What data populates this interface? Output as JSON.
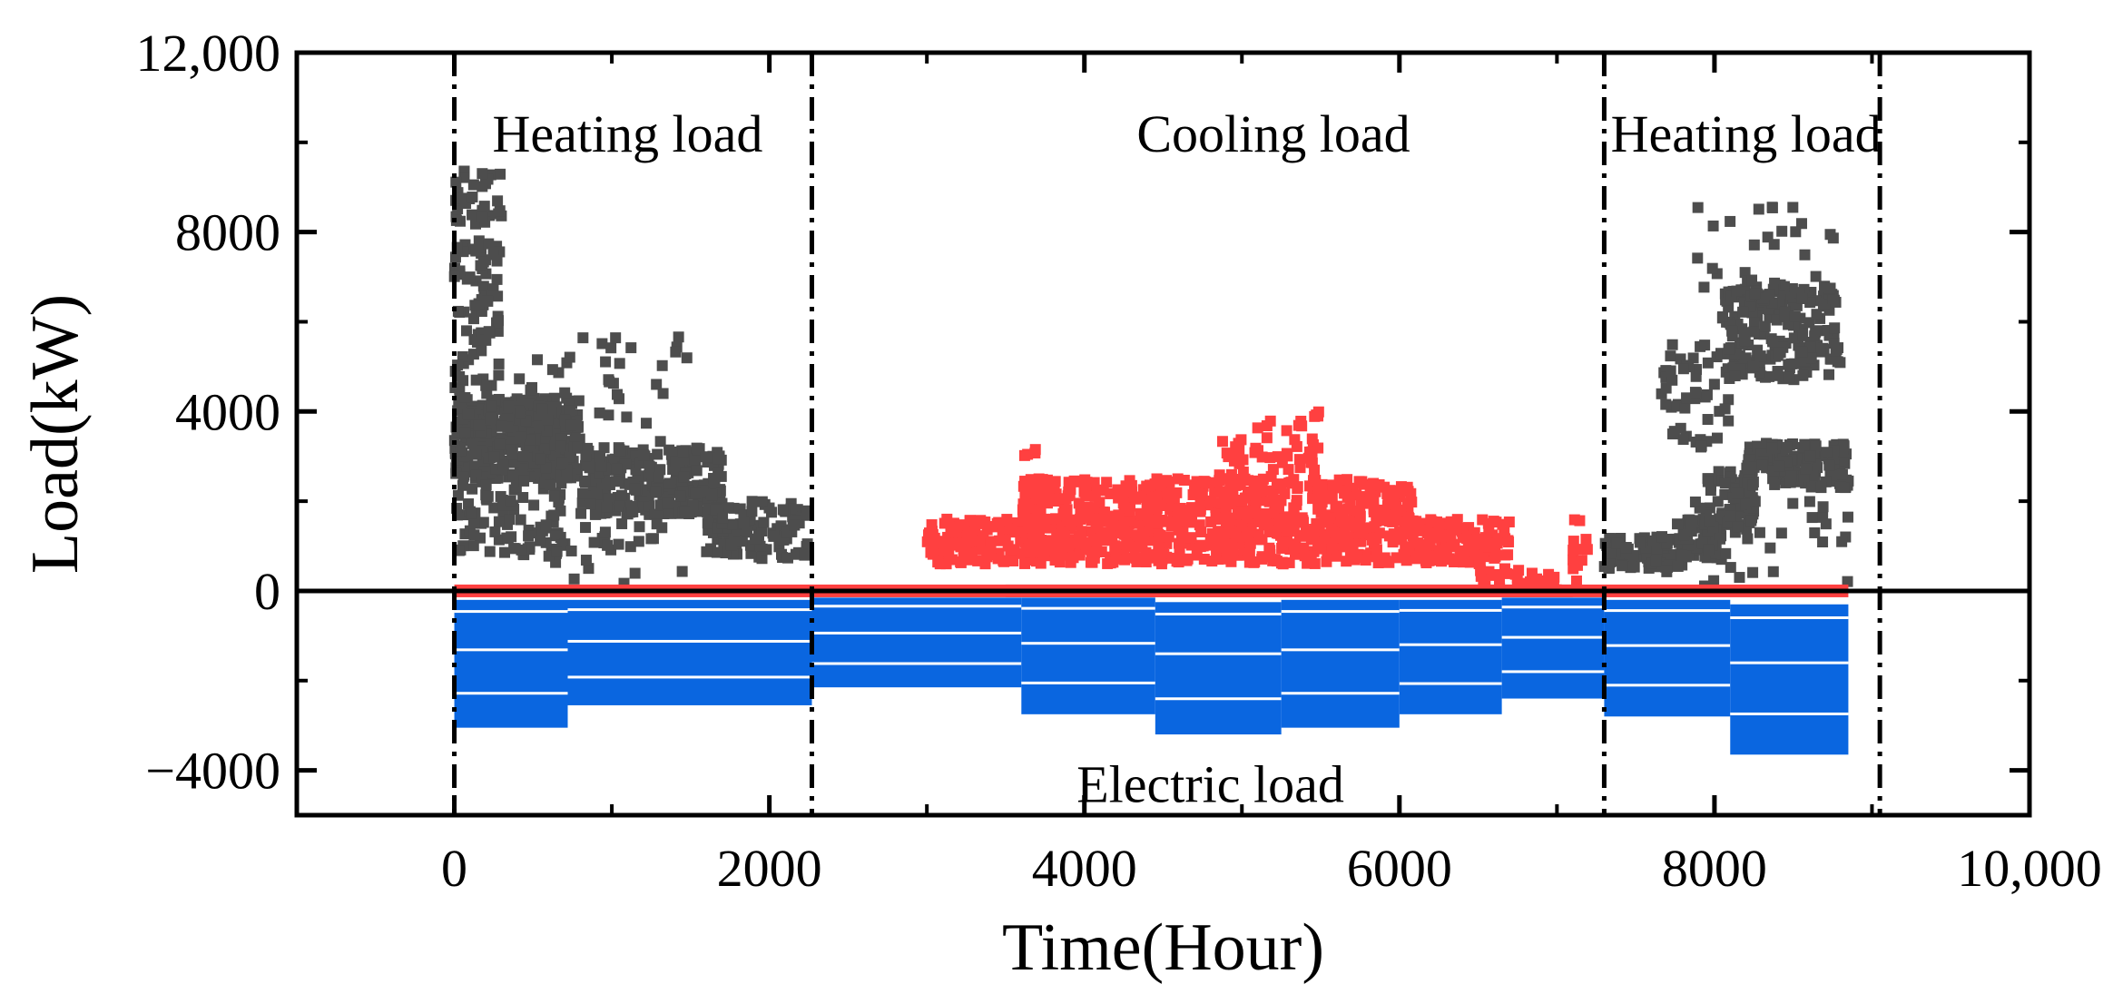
{
  "chart_data": {
    "type": "scatter",
    "title": "",
    "xlabel": "Time(Hour)",
    "ylabel": "Load(kW)",
    "xlim": [
      -1000,
      10000
    ],
    "ylim": [
      -5000,
      12000
    ],
    "x_ticks": [
      0,
      2000,
      4000,
      6000,
      8000,
      10000
    ],
    "x_tick_labels": [
      "0",
      "2000",
      "4000",
      "6000",
      "8000",
      "10,000"
    ],
    "y_ticks": [
      -4000,
      0,
      4000,
      8000,
      12000
    ],
    "y_tick_labels": [
      "−4000",
      "0",
      "4000",
      "8000",
      "12,000"
    ],
    "season_boundaries": [
      0,
      2270,
      7300,
      9050
    ],
    "annotations": [
      {
        "text": "Heating load",
        "x": 1100,
        "y": 10200
      },
      {
        "text": "Cooling load",
        "x": 5200,
        "y": 10200
      },
      {
        "text": "Heating load",
        "x": 8200,
        "y": 10200
      },
      {
        "text": "Electric load",
        "x": 4800,
        "y": -4300
      }
    ],
    "series": [
      {
        "name": "Heating load",
        "color": "#4d4d4d",
        "style": "scatter",
        "clusters": [
          {
            "x": [
              0,
              800
            ],
            "y": [
              2500,
              4300
            ],
            "n": 420
          },
          {
            "x": [
              0,
              300
            ],
            "y": [
              4300,
              9500
            ],
            "n": 110
          },
          {
            "x": [
              0,
              700
            ],
            "y": [
              800,
              2500
            ],
            "n": 90
          },
          {
            "x": [
              800,
              1700
            ],
            "y": [
              1700,
              3200
            ],
            "n": 260
          },
          {
            "x": [
              400,
              1500
            ],
            "y": [
              3200,
              5800
            ],
            "n": 40
          },
          {
            "x": [
              1600,
              2250
            ],
            "y": [
              700,
              2000
            ],
            "n": 110
          },
          {
            "x": [
              600,
              1500
            ],
            "y": [
              150,
              1500
            ],
            "n": 30
          },
          {
            "x": [
              7300,
              7800
            ],
            "y": [
              500,
              1200
            ],
            "n": 80
          },
          {
            "x": [
              7800,
              8050
            ],
            "y": [
              700,
              1600
            ],
            "n": 60
          },
          {
            "x": [
              7950,
              8250
            ],
            "y": [
              1300,
              2700
            ],
            "n": 70
          },
          {
            "x": [
              8200,
              8850
            ],
            "y": [
              2300,
              3300
            ],
            "n": 160
          },
          {
            "x": [
              7650,
              8100
            ],
            "y": [
              3200,
              5500
            ],
            "n": 50
          },
          {
            "x": [
              8050,
              8800
            ],
            "y": [
              4700,
              6800
            ],
            "n": 200
          },
          {
            "x": [
              7800,
              8800
            ],
            "y": [
              6500,
              8600
            ],
            "n": 30
          },
          {
            "x": [
              7600,
              8850
            ],
            "y": [
              100,
              2000
            ],
            "n": 40
          }
        ],
        "baseline": {
          "x": [
            3500,
            7100
          ],
          "y": 0
        }
      },
      {
        "name": "Cooling load",
        "color": "#ff4040",
        "style": "scatter",
        "clusters": [
          {
            "x": [
              3000,
              6700
            ],
            "y": [
              600,
              1600
            ],
            "n": 700
          },
          {
            "x": [
              3600,
              6100
            ],
            "y": [
              1500,
              2500
            ],
            "n": 420
          },
          {
            "x": [
              4800,
              5500
            ],
            "y": [
              2500,
              3400
            ],
            "n": 40
          },
          {
            "x": [
              5000,
              5500
            ],
            "y": [
              3400,
              4000
            ],
            "n": 12
          },
          {
            "x": [
              3600,
              3700
            ],
            "y": [
              3000,
              3200
            ],
            "n": 4
          },
          {
            "x": [
              6500,
              7000
            ],
            "y": [
              0,
              500
            ],
            "n": 30
          },
          {
            "x": [
              7100,
              7200
            ],
            "y": [
              200,
              1800
            ],
            "n": 12
          }
        ],
        "baseline": {
          "x": [
            0,
            8850
          ],
          "y": 0
        }
      },
      {
        "name": "Electric load",
        "color": "#0a66e0",
        "style": "band",
        "segments": [
          {
            "x": [
              0,
              720
            ],
            "top": -200,
            "bottom": -3050
          },
          {
            "x": [
              720,
              2270
            ],
            "top": -200,
            "bottom": -2550
          },
          {
            "x": [
              2270,
              3600
            ],
            "top": -150,
            "bottom": -2150
          },
          {
            "x": [
              3600,
              4450
            ],
            "top": -150,
            "bottom": -2750
          },
          {
            "x": [
              4450,
              5250
            ],
            "top": -250,
            "bottom": -3200
          },
          {
            "x": [
              5250,
              6000
            ],
            "top": -200,
            "bottom": -3050
          },
          {
            "x": [
              6000,
              6650
            ],
            "top": -200,
            "bottom": -2750
          },
          {
            "x": [
              6650,
              7300
            ],
            "top": -150,
            "bottom": -2400
          },
          {
            "x": [
              7300,
              8100
            ],
            "top": -200,
            "bottom": -2800
          },
          {
            "x": [
              8100,
              8850
            ],
            "top": -300,
            "bottom": -3650
          }
        ]
      }
    ]
  }
}
